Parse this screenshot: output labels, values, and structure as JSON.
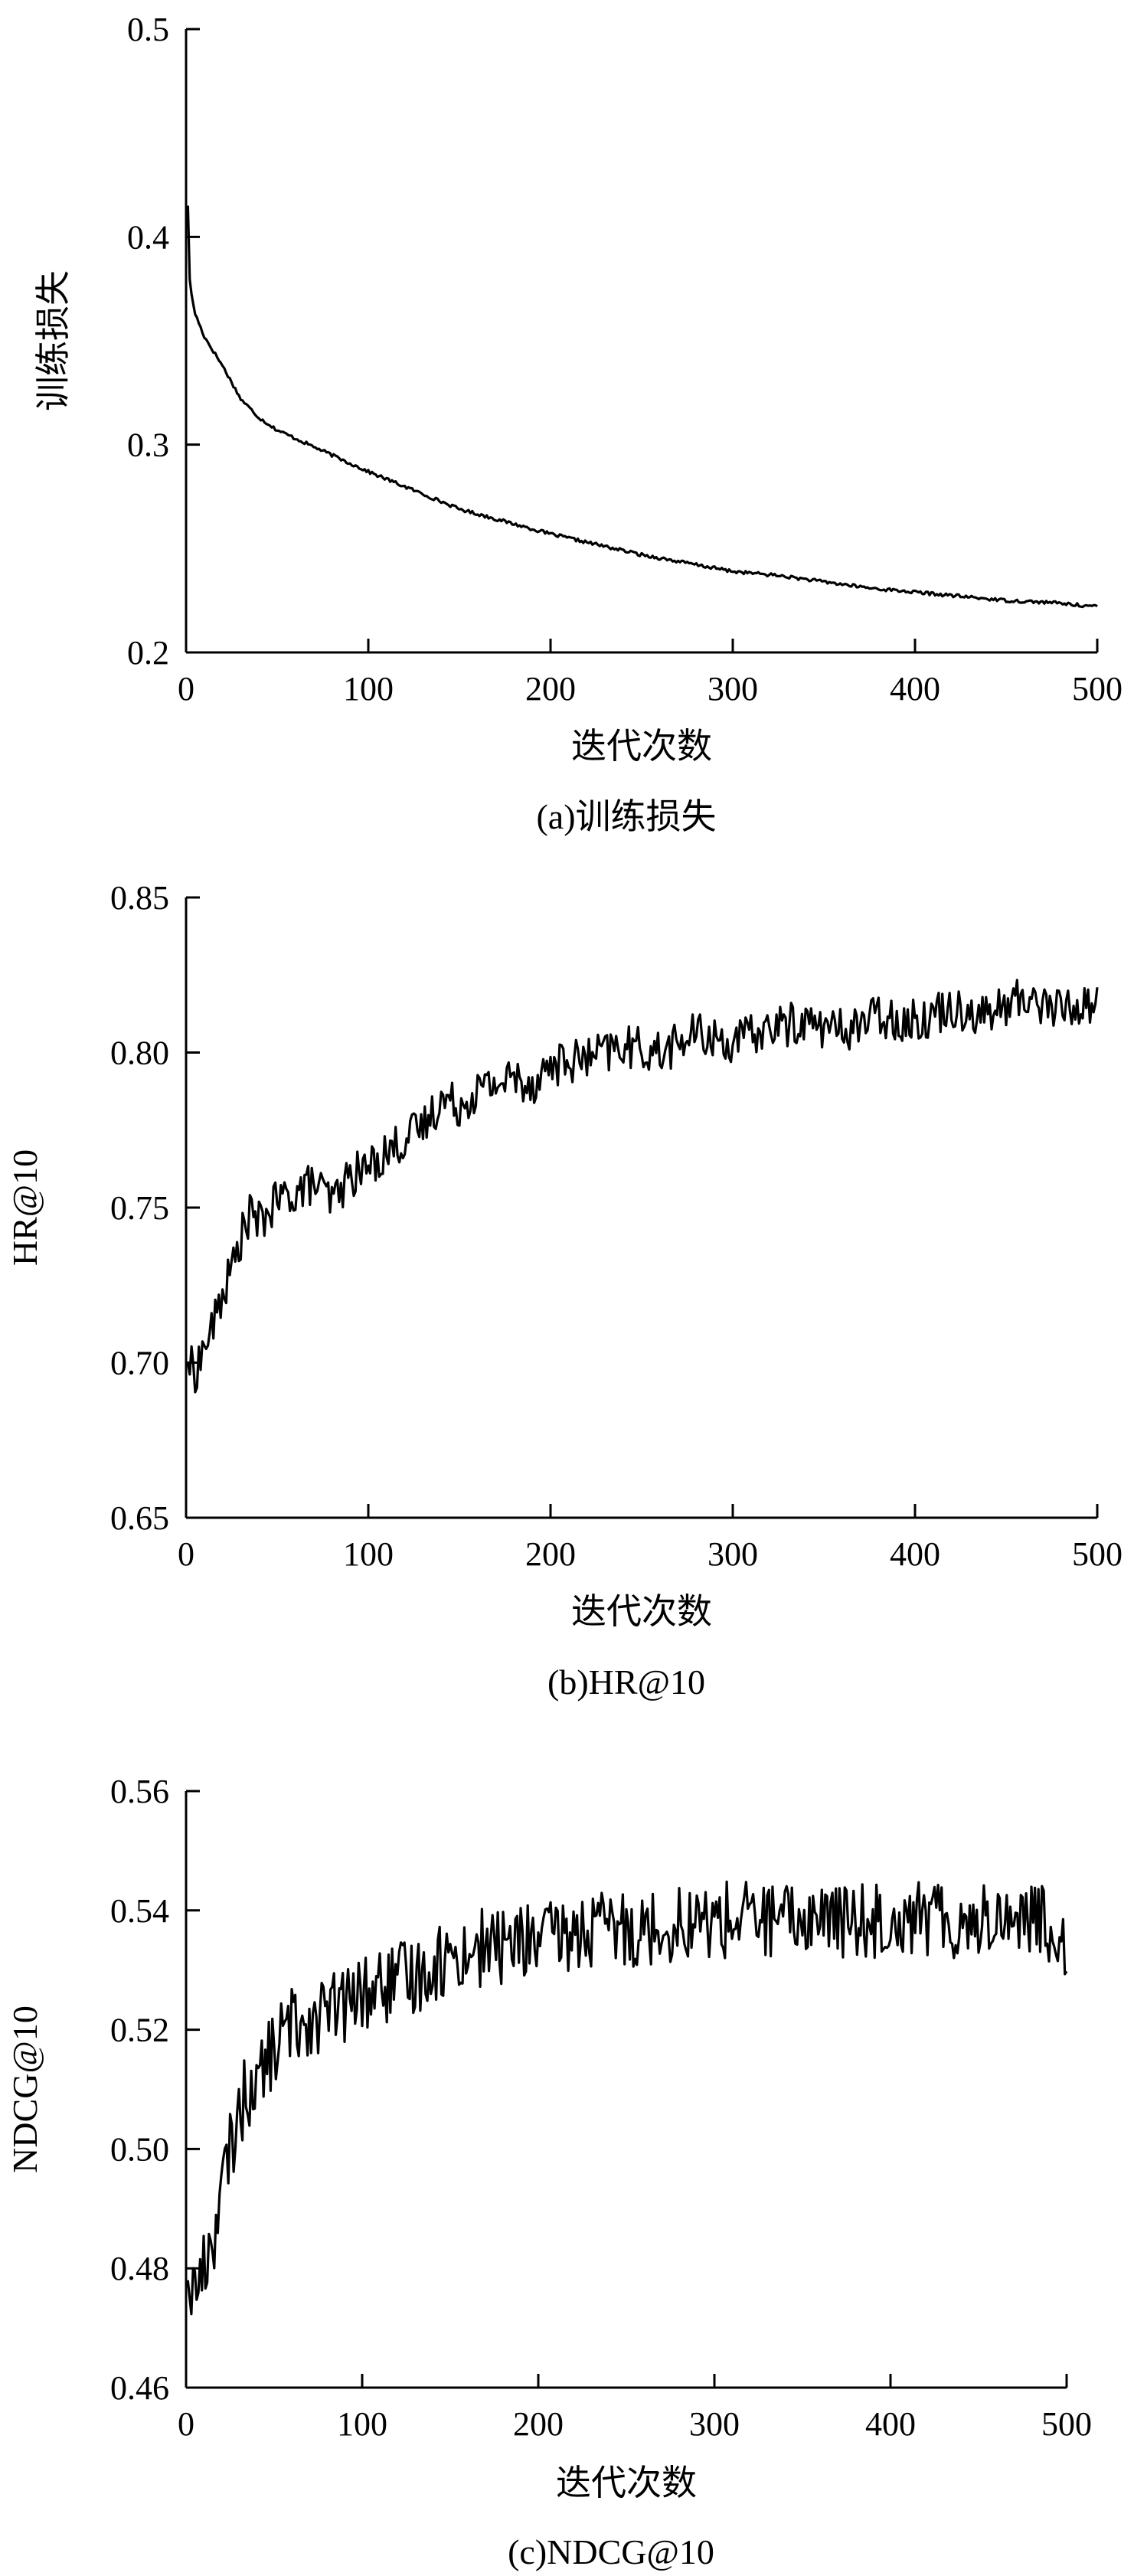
{
  "chart_data": [
    {
      "id": "a",
      "type": "line",
      "caption": "(a)训练损失",
      "xlabel": "迭代次数",
      "ylabel": "训练损失",
      "xlim": [
        0,
        500
      ],
      "ylim": [
        0.2,
        0.5
      ],
      "xticks": [
        "0",
        "100",
        "200",
        "300",
        "400",
        "500"
      ],
      "yticks": [
        "0.2",
        "0.3",
        "0.4",
        "0.5"
      ],
      "legend": "none",
      "grid": false,
      "line_color": "#000000",
      "series": [
        {
          "x": [
            1,
            2,
            3,
            5,
            10,
            15,
            20,
            25,
            30,
            40,
            50,
            60,
            75,
            90,
            100,
            125,
            150,
            175,
            200,
            225,
            250,
            275,
            300,
            325,
            350,
            375,
            400,
            425,
            450,
            475,
            500
          ],
          "values": [
            0.415,
            0.38,
            0.372,
            0.363,
            0.352,
            0.345,
            0.338,
            0.33,
            0.322,
            0.313,
            0.307,
            0.303,
            0.297,
            0.291,
            0.287,
            0.278,
            0.269,
            0.263,
            0.257,
            0.252,
            0.247,
            0.243,
            0.239,
            0.237,
            0.234,
            0.231,
            0.229,
            0.227,
            0.225,
            0.224,
            0.222
          ]
        }
      ]
    },
    {
      "id": "b",
      "type": "line",
      "caption": "(b)HR@10",
      "xlabel": "迭代次数",
      "ylabel": "HR@10",
      "xlim": [
        0,
        500
      ],
      "ylim": [
        0.65,
        0.85
      ],
      "xticks": [
        "0",
        "100",
        "200",
        "300",
        "400",
        "500"
      ],
      "yticks": [
        "0.65",
        "0.70",
        "0.75",
        "0.80",
        "0.85"
      ],
      "legend": "none",
      "grid": false,
      "line_color": "#000000",
      "series": [
        {
          "x": [
            1,
            5,
            10,
            15,
            20,
            25,
            30,
            35,
            40,
            50,
            60,
            70,
            80,
            90,
            100,
            110,
            120,
            130,
            140,
            150,
            160,
            170,
            180,
            190,
            200,
            220,
            240,
            260,
            280,
            300,
            320,
            340,
            360,
            380,
            400,
            420,
            440,
            460,
            480,
            500
          ],
          "values": [
            0.7,
            0.697,
            0.705,
            0.712,
            0.722,
            0.73,
            0.74,
            0.748,
            0.745,
            0.752,
            0.755,
            0.758,
            0.752,
            0.76,
            0.763,
            0.768,
            0.772,
            0.776,
            0.785,
            0.783,
            0.788,
            0.79,
            0.792,
            0.79,
            0.796,
            0.798,
            0.802,
            0.8,
            0.806,
            0.803,
            0.808,
            0.81,
            0.807,
            0.812,
            0.81,
            0.815,
            0.812,
            0.818,
            0.814,
            0.816
          ]
        }
      ]
    },
    {
      "id": "c",
      "type": "line",
      "caption": "(c)NDCG@10",
      "xlabel": "迭代次数",
      "ylabel": "NDCG@10",
      "xlim": [
        0,
        500
      ],
      "ylim": [
        0.46,
        0.56
      ],
      "xticks": [
        "0",
        "100",
        "200",
        "300",
        "400",
        "500"
      ],
      "yticks": [
        "0.46",
        "0.48",
        "0.50",
        "0.52",
        "0.54",
        "0.56"
      ],
      "legend": "none",
      "grid": false,
      "line_color": "#000000",
      "series": [
        {
          "x": [
            1,
            5,
            10,
            15,
            20,
            25,
            30,
            35,
            40,
            45,
            50,
            55,
            60,
            70,
            80,
            90,
            100,
            110,
            120,
            130,
            140,
            150,
            160,
            170,
            180,
            190,
            200,
            220,
            240,
            260,
            280,
            300,
            320,
            340,
            360,
            380,
            400,
            420,
            440,
            460,
            480,
            490,
            500
          ],
          "values": [
            0.478,
            0.476,
            0.48,
            0.485,
            0.492,
            0.5,
            0.506,
            0.51,
            0.511,
            0.514,
            0.517,
            0.519,
            0.521,
            0.522,
            0.523,
            0.524,
            0.526,
            0.527,
            0.528,
            0.529,
            0.531,
            0.532,
            0.533,
            0.534,
            0.534,
            0.535,
            0.535,
            0.536,
            0.537,
            0.537,
            0.538,
            0.538,
            0.539,
            0.538,
            0.539,
            0.538,
            0.539,
            0.539,
            0.538,
            0.539,
            0.539,
            0.537,
            0.535
          ]
        }
      ]
    }
  ]
}
